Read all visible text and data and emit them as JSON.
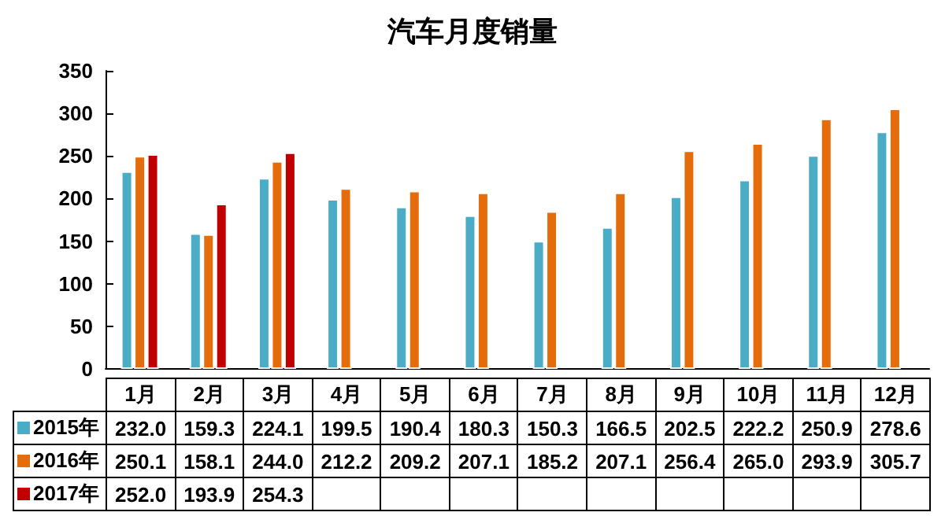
{
  "chart_data": {
    "type": "bar",
    "title": "汽车月度销量",
    "categories": [
      "1月",
      "2月",
      "3月",
      "4月",
      "5月",
      "6月",
      "7月",
      "8月",
      "9月",
      "10月",
      "11月",
      "12月"
    ],
    "series": [
      {
        "name": "2015年",
        "color": "#4bacc6",
        "values": [
          232.0,
          159.3,
          224.1,
          199.5,
          190.4,
          180.3,
          150.3,
          166.5,
          202.5,
          222.2,
          250.9,
          278.6
        ],
        "value_labels": [
          "232.0",
          "159.3",
          "224.1",
          "199.5",
          "190.4",
          "180.3",
          "150.3",
          "166.5",
          "202.5",
          "222.2",
          "250.9",
          "278.6"
        ]
      },
      {
        "name": "2016年",
        "color": "#e46c0a",
        "values": [
          250.1,
          158.1,
          244.0,
          212.2,
          209.2,
          207.1,
          185.2,
          207.1,
          256.4,
          265.0,
          293.9,
          305.7
        ],
        "value_labels": [
          "250.1",
          "158.1",
          "244.0",
          "212.2",
          "209.2",
          "207.1",
          "185.2",
          "207.1",
          "256.4",
          "265.0",
          "293.9",
          "305.7"
        ]
      },
      {
        "name": "2017年",
        "color": "#c00000",
        "values": [
          252.0,
          193.9,
          254.3,
          null,
          null,
          null,
          null,
          null,
          null,
          null,
          null,
          null
        ],
        "value_labels": [
          "252.0",
          "193.9",
          "254.3",
          null,
          null,
          null,
          null,
          null,
          null,
          null,
          null,
          null
        ]
      }
    ],
    "ylim": [
      0,
      350
    ],
    "yticks": [
      0,
      50,
      100,
      150,
      200,
      250,
      300,
      350
    ],
    "grid": false,
    "legend": "bottom"
  }
}
